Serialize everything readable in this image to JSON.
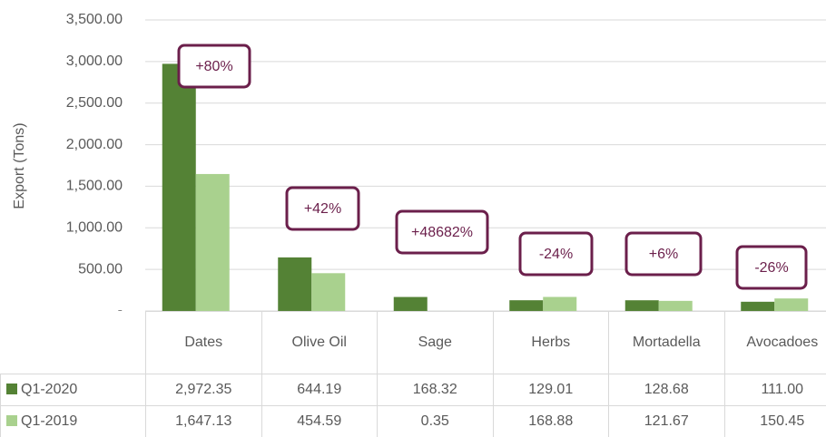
{
  "chart_data": {
    "type": "bar",
    "y_axis_label": "Export (Tons)",
    "categories": [
      "Dates",
      "Olive Oil",
      "Sage",
      "Herbs",
      "Mortadella",
      "Avocadoes"
    ],
    "series": [
      {
        "name": "Q1-2020",
        "color": "#548235",
        "values": [
          2972.35,
          644.19,
          168.32,
          129.01,
          128.68,
          111.0
        ],
        "value_labels": [
          "2,972.35",
          "644.19",
          "168.32",
          "129.01",
          "128.68",
          "111.00"
        ]
      },
      {
        "name": "Q1-2019",
        "color": "#a9d18e",
        "values": [
          1647.13,
          454.59,
          0.35,
          168.88,
          121.67,
          150.45
        ],
        "value_labels": [
          "1,647.13",
          "454.59",
          "0.35",
          "168.88",
          "121.67",
          "150.45"
        ]
      }
    ],
    "annotations": [
      "+80%",
      "+42%",
      "+48682%",
      "-24%",
      "+6%",
      "-26%"
    ],
    "ylim": [
      0,
      3500
    ],
    "yticks": [
      {
        "value": 0,
        "label": "-"
      },
      {
        "value": 500,
        "label": "500.00"
      },
      {
        "value": 1000,
        "label": "1,000.00"
      },
      {
        "value": 1500,
        "label": "1,500.00"
      },
      {
        "value": 2000,
        "label": "2,000.00"
      },
      {
        "value": 2500,
        "label": "2,500.00"
      },
      {
        "value": 3000,
        "label": "3,000.00"
      },
      {
        "value": 3500,
        "label": "3,500.00"
      }
    ],
    "grid": true
  }
}
